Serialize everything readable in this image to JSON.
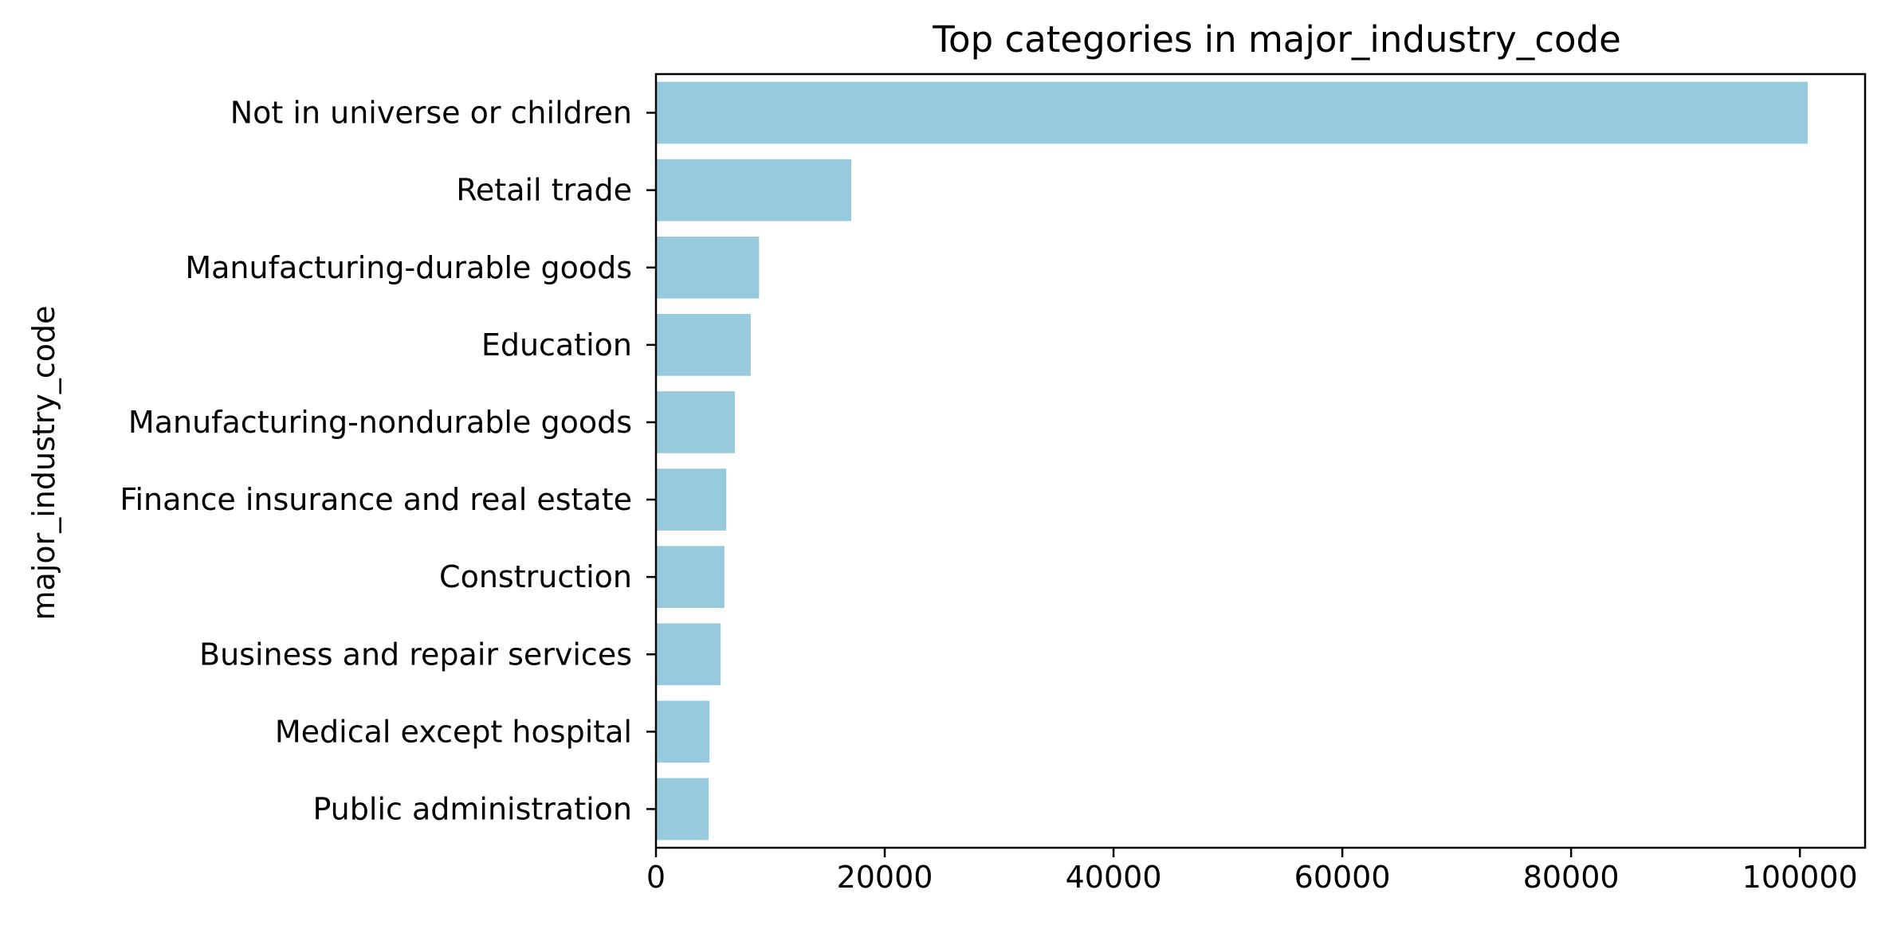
{
  "chart_data": {
    "type": "bar",
    "orientation": "horizontal",
    "title": "Top categories in major_industry_code",
    "xlabel": "",
    "ylabel": "major_industry_code",
    "categories": [
      "Not in universe or children",
      "Retail trade",
      "Manufacturing-durable goods",
      "Education",
      "Manufacturing-nondurable goods",
      "Finance insurance and real estate",
      "Construction",
      "Business and repair services",
      "Medical except hospital",
      "Public administration"
    ],
    "values": [
      100684,
      17070,
      9015,
      8283,
      6897,
      6145,
      5984,
      5651,
      4683,
      4610
    ],
    "xlim": [
      0,
      105700
    ],
    "xticks": [
      0,
      20000,
      40000,
      60000,
      80000,
      100000
    ],
    "xtick_labels": [
      "0",
      "20000",
      "40000",
      "60000",
      "80000",
      "100000"
    ],
    "bar_color": "#97cadc",
    "grid": false
  }
}
